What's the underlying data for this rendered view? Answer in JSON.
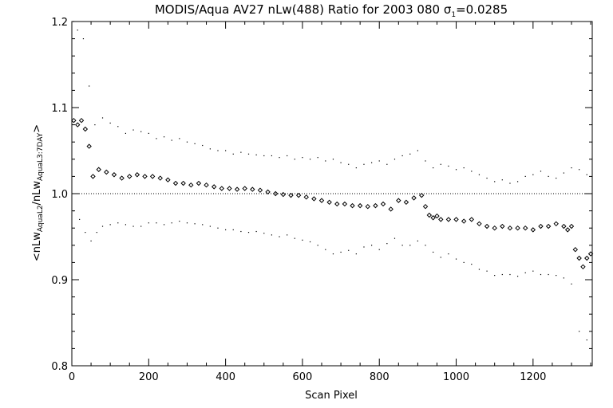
{
  "chart_data": {
    "type": "scatter",
    "title_main": "MODIS/Aqua AV27 nLw(488) Ratio for 2003 080 ",
    "title_sigma": "σ",
    "title_sigma_sub": "1",
    "title_sigma_value": "=0.0285",
    "xlabel": "Scan Pixel",
    "ylabel": {
      "open": "<nLw",
      "sub1": "AquaL2",
      "mid": "/nLw",
      "sub2": "AquaL3:7DAY",
      "close": ">"
    },
    "xlim": [
      0,
      1354
    ],
    "ylim": [
      0.8,
      1.2
    ],
    "xticks": [
      {
        "value": 0,
        "label": "0"
      },
      {
        "value": 200,
        "label": "200"
      },
      {
        "value": 400,
        "label": "400"
      },
      {
        "value": 600,
        "label": "600"
      },
      {
        "value": 800,
        "label": "800"
      },
      {
        "value": 1000,
        "label": "1000"
      },
      {
        "value": 1200,
        "label": "1200"
      }
    ],
    "yticks": [
      {
        "value": 0.8,
        "label": "0.8"
      },
      {
        "value": 0.9,
        "label": "0.9"
      },
      {
        "value": 1.0,
        "label": "1.0"
      },
      {
        "value": 1.1,
        "label": "1.1"
      },
      {
        "value": 1.2,
        "label": "1.2"
      }
    ],
    "reference_line": 1.0,
    "series": [
      {
        "role": "mean",
        "marker": "diamond",
        "color": "#000000",
        "x": [
          5,
          15,
          25,
          35,
          45,
          55,
          70,
          90,
          110,
          130,
          150,
          170,
          190,
          210,
          230,
          250,
          270,
          290,
          310,
          330,
          350,
          370,
          390,
          410,
          430,
          450,
          470,
          490,
          510,
          530,
          550,
          570,
          590,
          610,
          630,
          650,
          670,
          690,
          710,
          730,
          750,
          770,
          790,
          810,
          830,
          850,
          870,
          890,
          910,
          920,
          930,
          940,
          950,
          960,
          980,
          1000,
          1020,
          1040,
          1060,
          1080,
          1100,
          1120,
          1140,
          1160,
          1180,
          1200,
          1220,
          1240,
          1260,
          1280,
          1290,
          1300,
          1310,
          1320,
          1330,
          1340,
          1350
        ],
        "y": [
          1.085,
          1.08,
          1.085,
          1.075,
          1.055,
          1.02,
          1.028,
          1.025,
          1.022,
          1.018,
          1.02,
          1.022,
          1.02,
          1.02,
          1.018,
          1.016,
          1.012,
          1.012,
          1.01,
          1.012,
          1.01,
          1.008,
          1.006,
          1.006,
          1.005,
          1.006,
          1.005,
          1.004,
          1.002,
          1.0,
          0.999,
          0.998,
          0.998,
          0.996,
          0.994,
          0.992,
          0.99,
          0.988,
          0.988,
          0.986,
          0.986,
          0.985,
          0.986,
          0.988,
          0.982,
          0.992,
          0.99,
          0.995,
          0.998,
          0.985,
          0.975,
          0.972,
          0.974,
          0.97,
          0.97,
          0.97,
          0.968,
          0.97,
          0.965,
          0.962,
          0.96,
          0.962,
          0.96,
          0.96,
          0.96,
          0.958,
          0.962,
          0.962,
          0.965,
          0.962,
          0.958,
          0.962,
          0.935,
          0.925,
          0.915,
          0.925,
          0.93
        ]
      },
      {
        "role": "upper",
        "marker": "dot",
        "color": "#000000",
        "x": [
          5,
          15,
          30,
          45,
          60,
          80,
          100,
          120,
          140,
          160,
          180,
          200,
          220,
          240,
          260,
          280,
          300,
          320,
          340,
          360,
          380,
          400,
          420,
          440,
          460,
          480,
          500,
          520,
          540,
          560,
          580,
          600,
          620,
          640,
          660,
          680,
          700,
          720,
          740,
          760,
          780,
          800,
          820,
          840,
          860,
          880,
          900,
          920,
          940,
          960,
          980,
          1000,
          1020,
          1040,
          1060,
          1080,
          1100,
          1120,
          1140,
          1160,
          1180,
          1200,
          1220,
          1240,
          1260,
          1280,
          1300,
          1320,
          1340
        ],
        "y": [
          1.2,
          1.19,
          1.18,
          1.125,
          1.08,
          1.088,
          1.082,
          1.078,
          1.07,
          1.074,
          1.072,
          1.07,
          1.064,
          1.066,
          1.062,
          1.064,
          1.06,
          1.058,
          1.056,
          1.052,
          1.05,
          1.05,
          1.046,
          1.048,
          1.046,
          1.045,
          1.044,
          1.044,
          1.042,
          1.044,
          1.04,
          1.042,
          1.04,
          1.042,
          1.038,
          1.04,
          1.036,
          1.034,
          1.03,
          1.034,
          1.036,
          1.038,
          1.034,
          1.04,
          1.044,
          1.046,
          1.05,
          1.038,
          1.03,
          1.034,
          1.032,
          1.028,
          1.03,
          1.026,
          1.022,
          1.018,
          1.014,
          1.016,
          1.012,
          1.014,
          1.02,
          1.022,
          1.026,
          1.02,
          1.018,
          1.024,
          1.03,
          1.028,
          1.022
        ]
      },
      {
        "role": "lower",
        "marker": "dot",
        "color": "#000000",
        "x": [
          5,
          20,
          35,
          50,
          65,
          80,
          100,
          120,
          140,
          160,
          180,
          200,
          220,
          240,
          260,
          280,
          300,
          320,
          340,
          360,
          380,
          400,
          420,
          440,
          460,
          480,
          500,
          520,
          540,
          560,
          580,
          600,
          620,
          640,
          660,
          680,
          700,
          720,
          740,
          760,
          780,
          800,
          820,
          840,
          860,
          880,
          900,
          920,
          940,
          960,
          980,
          1000,
          1020,
          1040,
          1060,
          1080,
          1100,
          1120,
          1140,
          1160,
          1180,
          1200,
          1220,
          1240,
          1260,
          1280,
          1300,
          1320,
          1340
        ],
        "y": [
          0.98,
          0.97,
          0.955,
          0.945,
          0.955,
          0.962,
          0.964,
          0.966,
          0.964,
          0.962,
          0.962,
          0.966,
          0.966,
          0.964,
          0.966,
          0.968,
          0.966,
          0.965,
          0.964,
          0.962,
          0.96,
          0.958,
          0.958,
          0.956,
          0.955,
          0.956,
          0.954,
          0.952,
          0.95,
          0.952,
          0.948,
          0.946,
          0.944,
          0.94,
          0.935,
          0.93,
          0.932,
          0.934,
          0.93,
          0.938,
          0.94,
          0.935,
          0.942,
          0.948,
          0.94,
          0.94,
          0.945,
          0.94,
          0.932,
          0.926,
          0.93,
          0.924,
          0.92,
          0.918,
          0.912,
          0.91,
          0.905,
          0.906,
          0.906,
          0.904,
          0.908,
          0.91,
          0.906,
          0.906,
          0.905,
          0.902,
          0.895,
          0.84,
          0.83
        ]
      }
    ]
  }
}
